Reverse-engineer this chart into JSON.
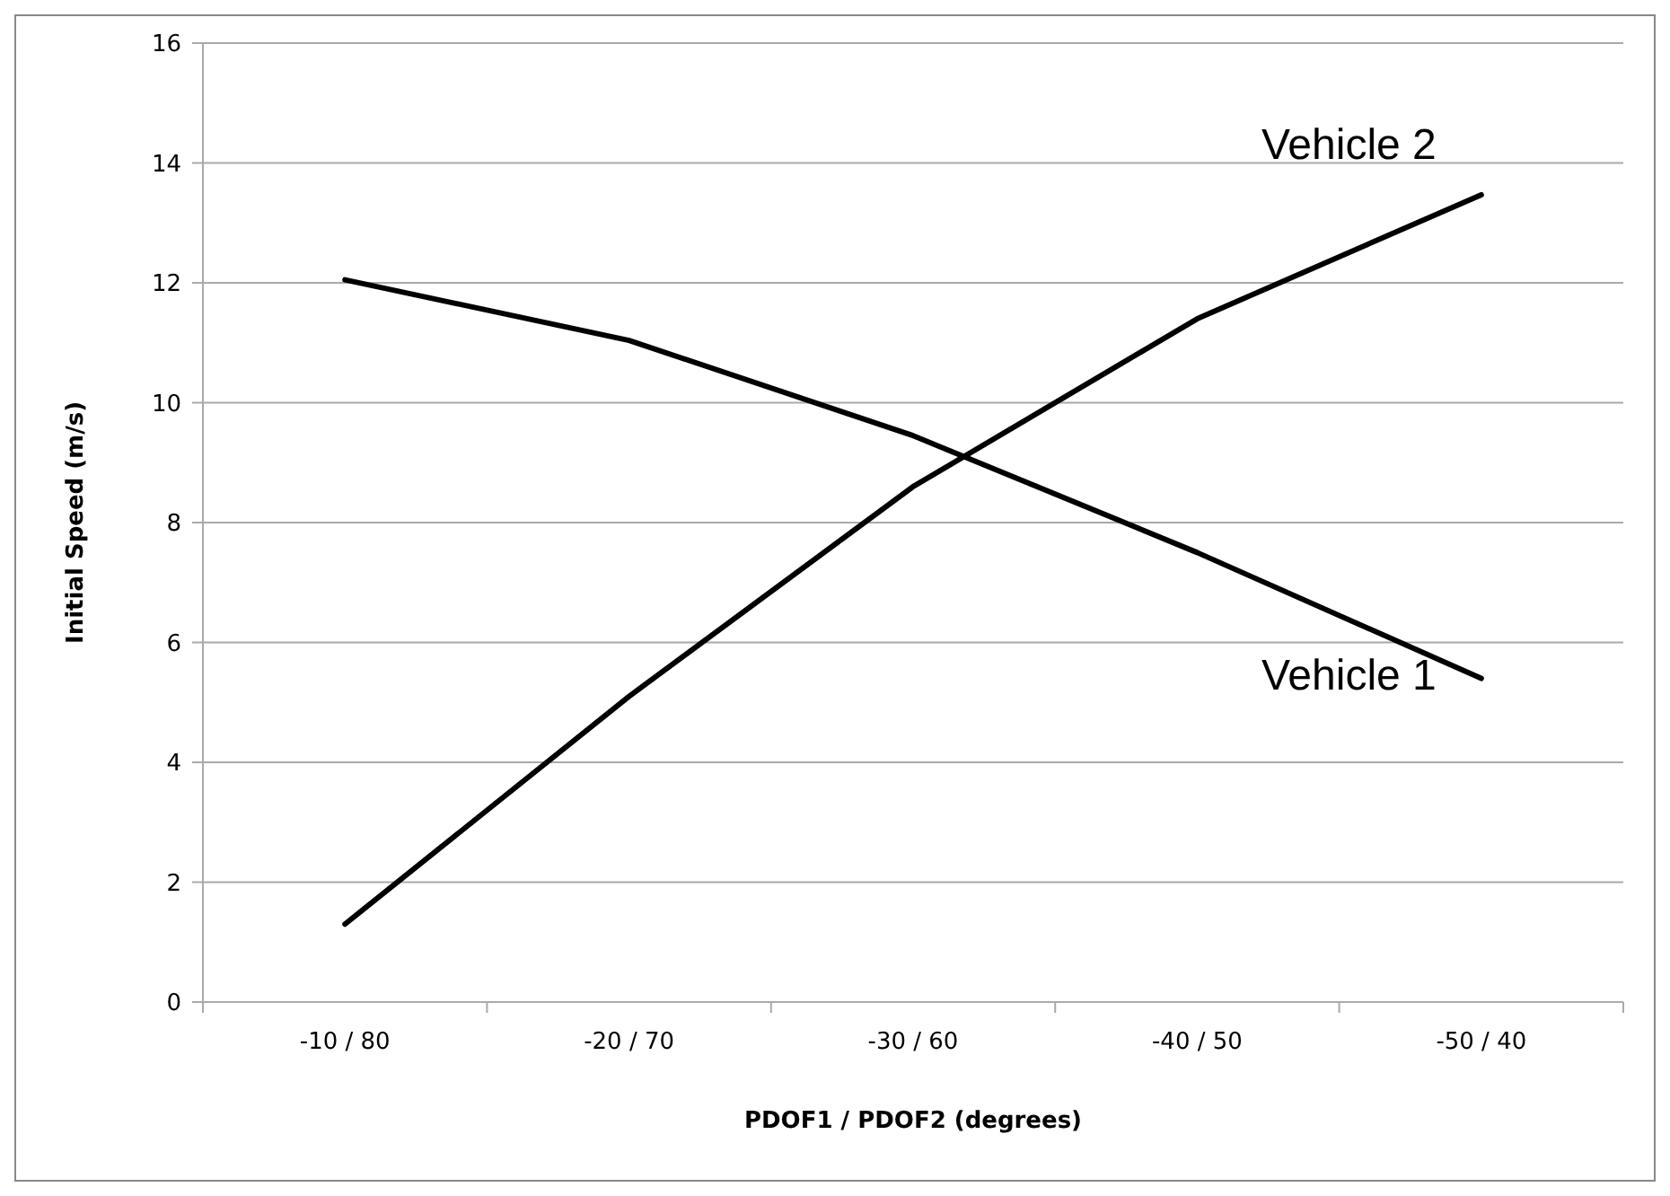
{
  "chart_data": {
    "type": "line",
    "xlabel": "PDOF1 / PDOF2 (degrees)",
    "ylabel": "Initial Speed (m/s)",
    "categories": [
      "-10 / 80",
      "-20 / 70",
      "-30 / 60",
      "-40 / 50",
      "-50 / 40"
    ],
    "series": [
      {
        "name": "Vehicle 1",
        "color": "#000000",
        "values": [
          12.05,
          11.04,
          9.45,
          7.5,
          5.4
        ]
      },
      {
        "name": "Vehicle 2",
        "color": "#000000",
        "values": [
          1.3,
          5.1,
          8.6,
          11.4,
          13.47
        ]
      }
    ],
    "ylim": [
      0,
      16
    ],
    "yticks": [
      0,
      2,
      4,
      6,
      8,
      10,
      12,
      14,
      16
    ],
    "grid": "y",
    "marker": "none",
    "line_style": "solid"
  }
}
